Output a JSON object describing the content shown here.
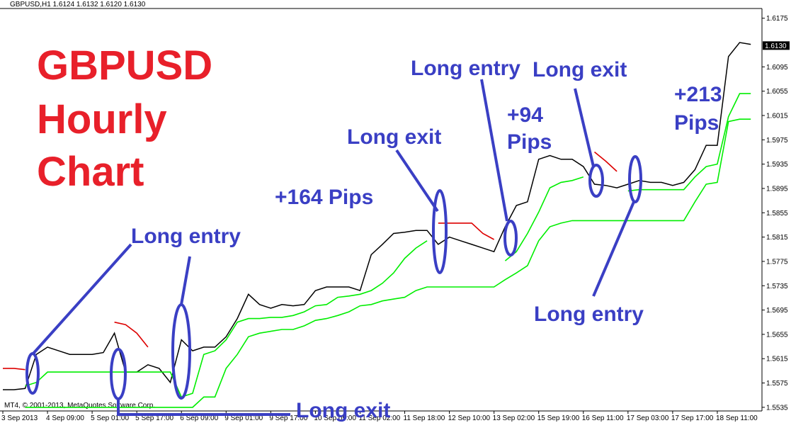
{
  "chart_data": {
    "type": "line",
    "header": "GBPUSD,H1  1.6124 1.6132 1.6120 1.6130",
    "title_lines": [
      "GBPUSD",
      "Hourly",
      "Chart"
    ],
    "copyright": "MT4, © 2001-2013, MetaQuotes Software Corp.",
    "categories": [
      "3 Sep 2013",
      null,
      null,
      null,
      "4 Sep 09:00",
      null,
      null,
      null,
      "5 Sep 01:00",
      null,
      null,
      null,
      "5 Sep 17:00",
      null,
      null,
      null,
      "6 Sep 09:00",
      null,
      null,
      null,
      "9 Sep 01:00",
      null,
      null,
      null,
      "9 Sep 17:00",
      null,
      null,
      null,
      "10 Sep 09:00",
      null,
      null,
      null,
      "11 Sep 02:00",
      null,
      null,
      null,
      "11 Sep 18:00",
      null,
      null,
      null,
      "12 Sep 10:00",
      null,
      null,
      null,
      "13 Sep 02:00",
      null,
      null,
      null,
      "15 Sep 19:00",
      null,
      null,
      null,
      "16 Sep 11:00",
      null,
      null,
      null,
      "17 Sep 03:00",
      null,
      null,
      null,
      "17 Sep 17:00",
      null,
      null,
      null,
      "18 Sep 11:00",
      null,
      null,
      null
    ],
    "series": [
      {
        "color": "#000000",
        "values": [
          1.5564,
          1.5564,
          1.5566,
          1.5622,
          1.5634,
          1.5628,
          1.5622,
          1.5622,
          1.5622,
          1.5625,
          1.5657,
          1.5593,
          1.5593,
          1.5605,
          1.5599,
          1.5576,
          1.5646,
          1.5628,
          1.5634,
          1.5634,
          1.5651,
          1.5681,
          1.5721,
          1.5704,
          1.5698,
          1.5704,
          1.5702,
          1.5704,
          1.5727,
          1.5733,
          1.5733,
          1.5733,
          1.5727,
          1.5786,
          1.5803,
          1.5821,
          1.5823,
          1.5826,
          1.5826,
          1.5803,
          1.5815,
          1.5809,
          1.5803,
          1.5797,
          1.5791,
          1.5832,
          1.5867,
          1.5873,
          1.5943,
          1.5949,
          1.5943,
          1.5943,
          1.5931,
          1.5902,
          1.59,
          1.5896,
          1.5902,
          1.5908,
          1.5905,
          1.5905,
          1.59,
          1.5905,
          1.5926,
          1.5966,
          1.5966,
          1.6112,
          1.6135,
          1.6132
        ]
      },
      {
        "color": "#00ee00",
        "values": [
          null,
          null,
          1.557,
          1.5576,
          1.5593,
          1.5593,
          1.5593,
          1.5593,
          1.5593,
          1.5593,
          1.5593,
          1.5593,
          1.5593,
          1.5593,
          1.5593,
          1.5593,
          1.5552,
          1.5558,
          1.5622,
          1.5628,
          1.5646,
          1.5675,
          1.5681,
          1.5681,
          1.5683,
          1.5683,
          1.5686,
          1.5692,
          1.5702,
          1.5704,
          1.5716,
          1.5718,
          1.5721,
          1.5727,
          1.5739,
          1.5756,
          1.578,
          1.5797,
          1.5809,
          null,
          null,
          null,
          null,
          null,
          null,
          1.5776,
          1.5791,
          1.5821,
          1.5856,
          1.5896,
          1.5905,
          1.5908,
          1.5914,
          null,
          null,
          null,
          1.5891,
          1.5893,
          1.5893,
          1.5893,
          1.5893,
          1.5893,
          1.5914,
          1.5931,
          1.5935,
          1.6013,
          1.6051,
          1.6051
        ]
      },
      {
        "color": "#dd0000",
        "values": [
          1.5599,
          1.5599,
          1.5597,
          null,
          null,
          null,
          null,
          null,
          null,
          null,
          1.5675,
          1.5671,
          1.5657,
          1.5634,
          null,
          null,
          null,
          null,
          null,
          null,
          null,
          null,
          null,
          null,
          null,
          null,
          null,
          null,
          null,
          null,
          null,
          null,
          null,
          null,
          null,
          null,
          null,
          null,
          null,
          1.5838,
          1.5838,
          1.5838,
          1.5838,
          1.5821,
          1.5811,
          null,
          null,
          null,
          null,
          null,
          null,
          null,
          null,
          1.5955,
          1.594,
          1.5923,
          null,
          null,
          null,
          null,
          null,
          null,
          null,
          null,
          null,
          null,
          null,
          null
        ]
      },
      {
        "color": "#00ee00",
        "values": [
          null,
          null,
          1.5535,
          1.5535,
          1.5535,
          1.5535,
          1.5535,
          1.5535,
          1.5535,
          1.5535,
          1.5535,
          1.5535,
          1.5535,
          1.5535,
          1.5535,
          1.5535,
          1.5535,
          1.5535,
          1.5552,
          1.5552,
          1.5599,
          1.5622,
          1.5651,
          1.5657,
          1.566,
          1.5663,
          1.5663,
          1.5669,
          1.5678,
          1.5681,
          1.5686,
          1.5692,
          1.5702,
          1.5704,
          1.571,
          1.5713,
          1.5716,
          1.5727,
          1.5733,
          1.5733,
          1.5733,
          1.5733,
          1.5733,
          1.5733,
          1.5733,
          1.5745,
          1.5756,
          1.5768,
          1.5809,
          1.5832,
          1.5838,
          1.5842,
          1.5842,
          1.5842,
          1.5842,
          1.5842,
          1.5842,
          1.5842,
          1.5842,
          1.5842,
          1.5842,
          1.5842,
          1.5873,
          1.5902,
          1.5905,
          1.6005,
          1.6009,
          1.6009
        ]
      }
    ],
    "ylim": [
      1.5529,
      1.6191
    ],
    "yticks": [
      1.6175,
      1.6095,
      1.6055,
      1.6015,
      1.5975,
      1.5935,
      1.5895,
      1.5855,
      1.5815,
      1.5775,
      1.5735,
      1.5695,
      1.5655,
      1.5615,
      1.5575,
      1.5535
    ],
    "last_price": {
      "value": 1.613,
      "label": "1.6130"
    },
    "grid": false,
    "annotations": [
      {
        "lines": [
          "Long entry"
        ]
      },
      {
        "lines": [
          "+164 Pips"
        ]
      },
      {
        "lines": [
          "Long exit"
        ]
      },
      {
        "lines": [
          "Long entry"
        ]
      },
      {
        "lines": [
          "Long exit"
        ]
      },
      {
        "lines": [
          "+94",
          "Pips"
        ]
      },
      {
        "lines": [
          "+213",
          "Pips"
        ]
      },
      {
        "lines": [
          "Long entry"
        ]
      },
      {
        "lines": [
          "Long exit"
        ]
      }
    ]
  }
}
